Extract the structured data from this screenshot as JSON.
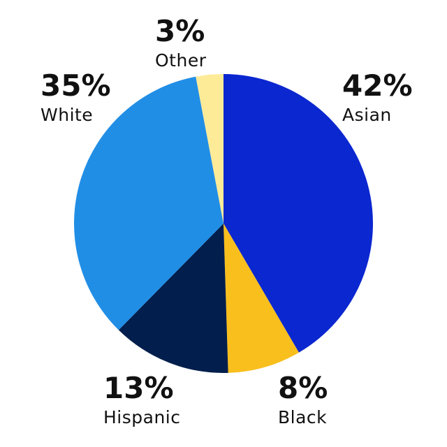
{
  "chart_data": {
    "type": "pie",
    "categories": [
      "Asian",
      "Black",
      "Hispanic",
      "White",
      "Other"
    ],
    "values": [
      42,
      8,
      13,
      35,
      3
    ],
    "labels": [
      "42%",
      "8%",
      "13%",
      "35%",
      "3%"
    ],
    "colors": [
      "#0b27d0",
      "#f8bf1d",
      "#011e4c",
      "#218ee6",
      "#feeb98"
    ]
  }
}
